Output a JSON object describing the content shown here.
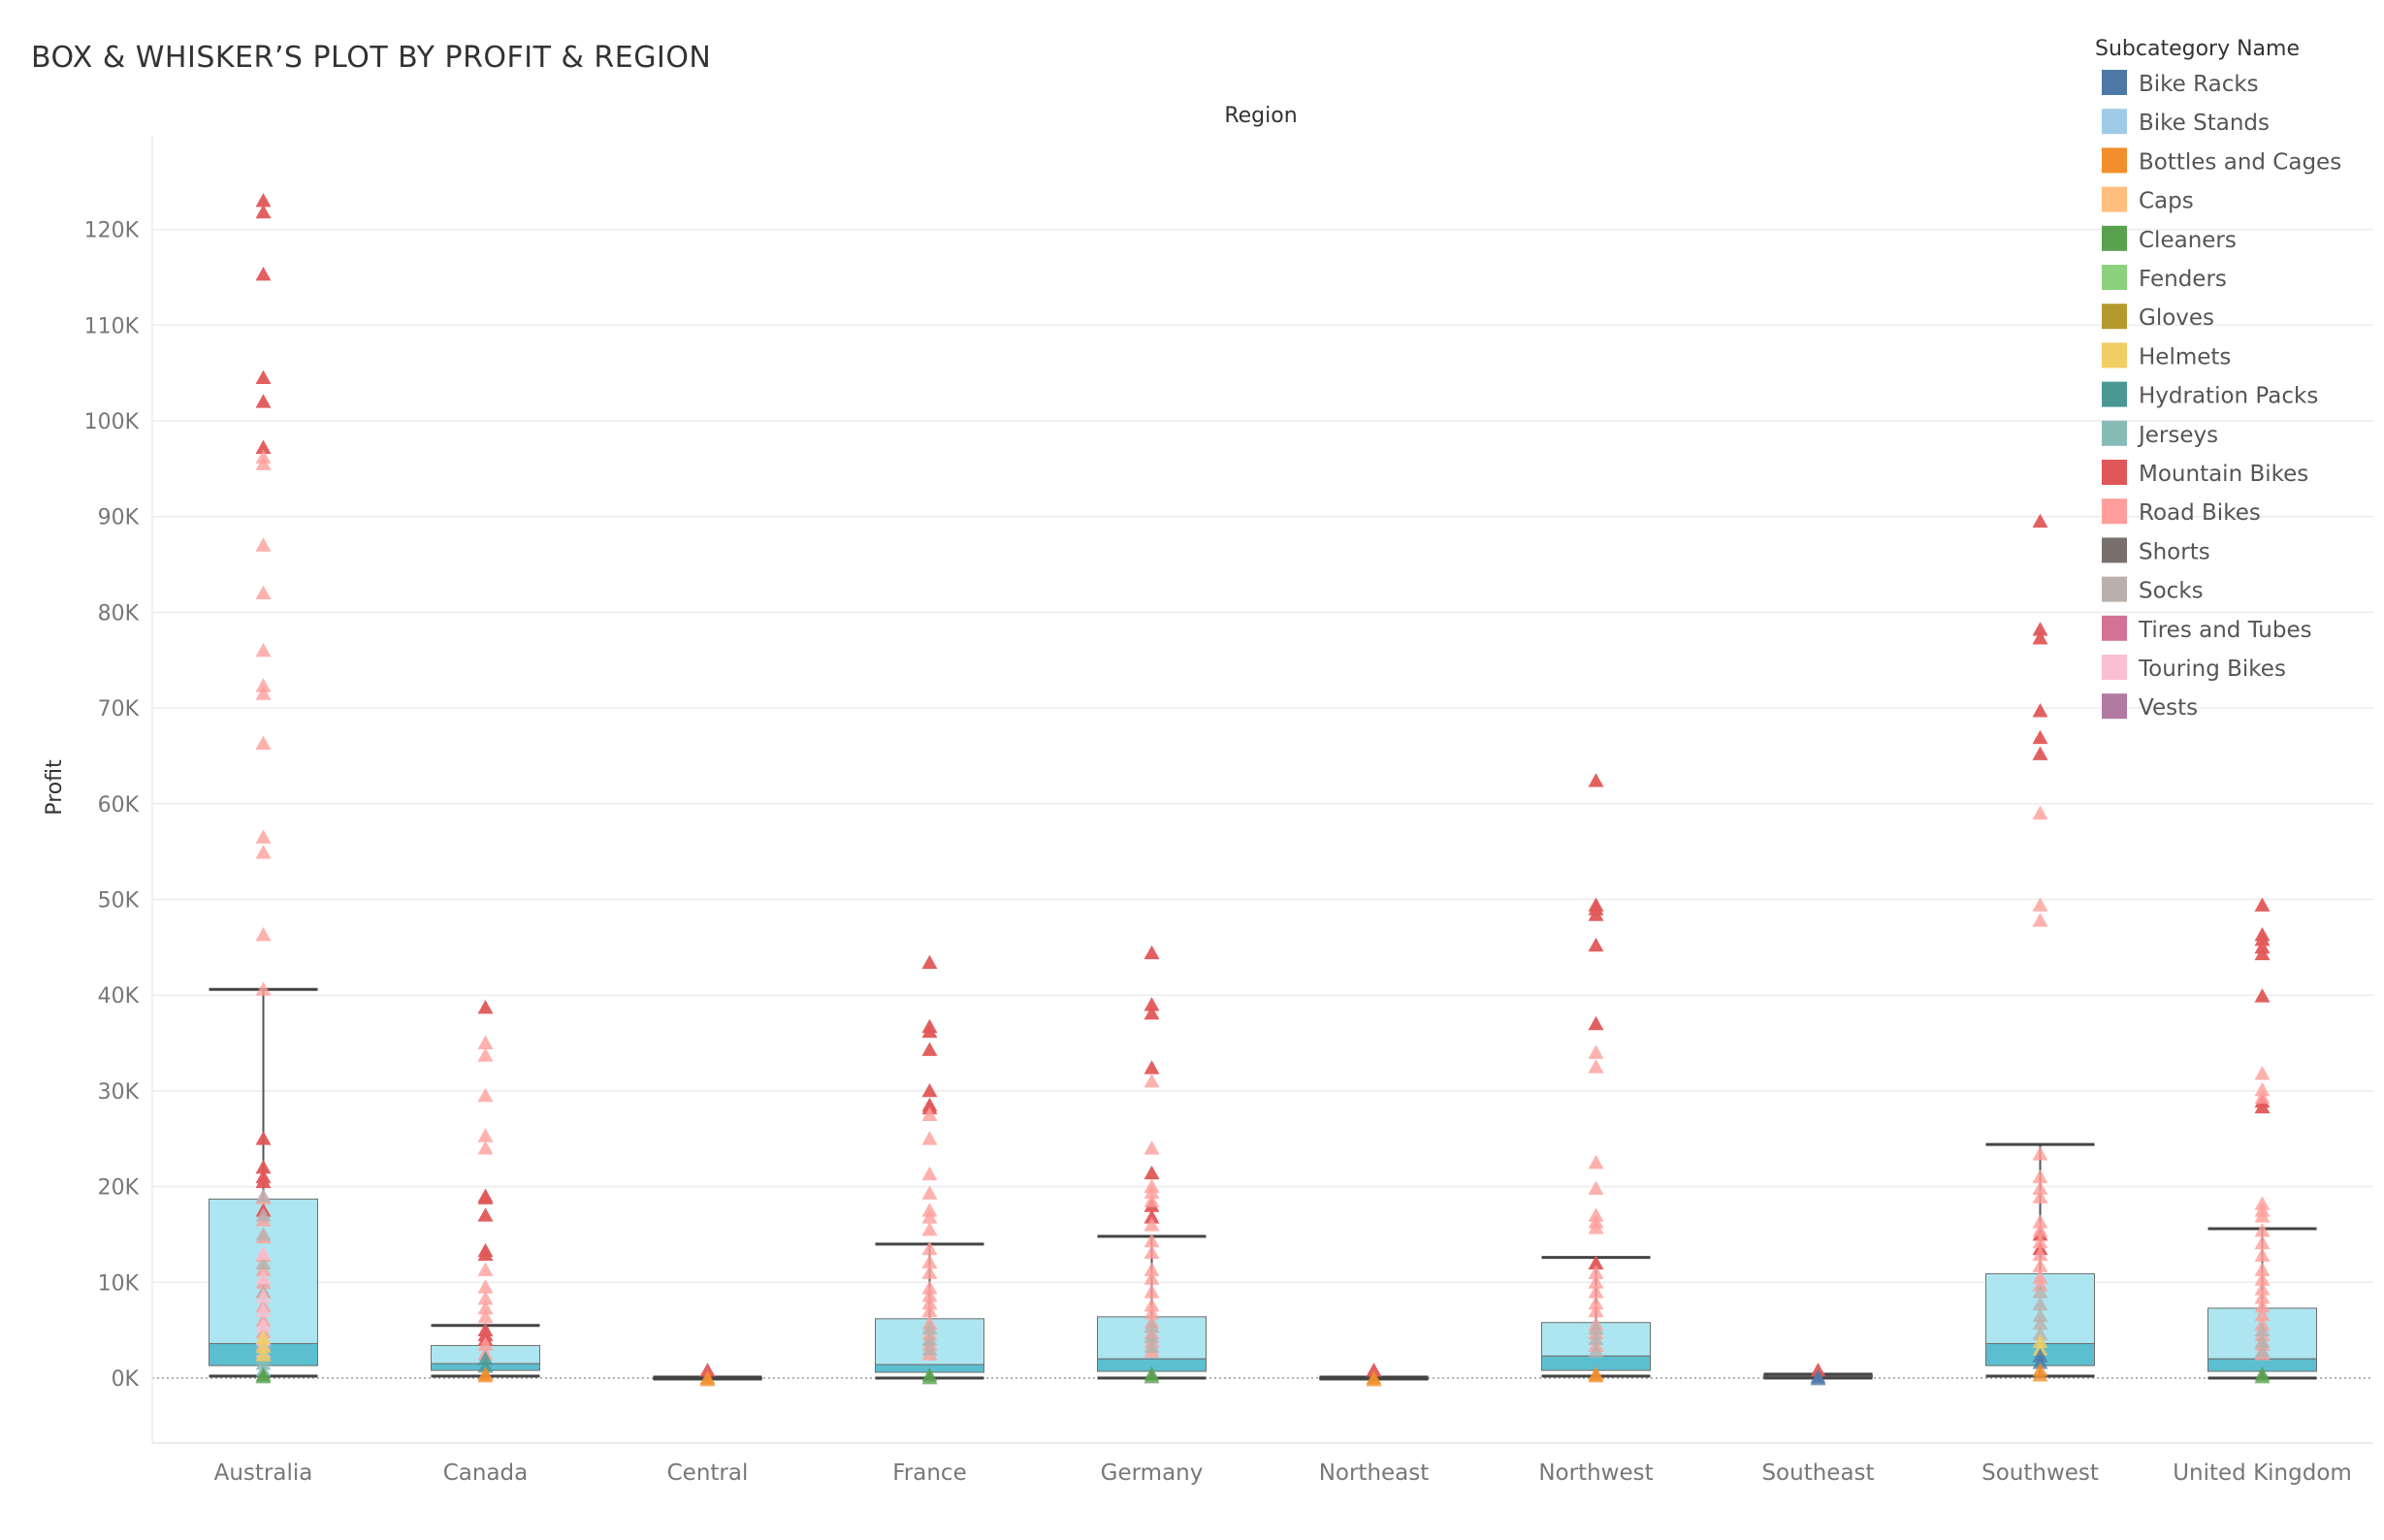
{
  "chart_data": {
    "type": "box",
    "title": "BOX & WHISKER’S PLOT BY PROFIT & REGION",
    "column_header": "Region",
    "ylabel": "Profit",
    "ylim": [
      -7000,
      130000
    ],
    "yticks": [
      0,
      10000,
      20000,
      30000,
      40000,
      50000,
      60000,
      70000,
      80000,
      90000,
      100000,
      110000,
      120000
    ],
    "ytick_labels": [
      "0K",
      "10K",
      "20K",
      "30K",
      "40K",
      "50K",
      "60K",
      "70K",
      "80K",
      "90K",
      "100K",
      "110K",
      "120K"
    ],
    "grid": true,
    "legend_placement": "top-right",
    "legend_title": "Subcategory Name",
    "categories": [
      "Australia",
      "Canada",
      "Central",
      "France",
      "Germany",
      "Northeast",
      "Northwest",
      "Southeast",
      "Southwest",
      "United Kingdom"
    ],
    "legend": [
      {
        "name": "Bike Racks",
        "color": "#4e79a7"
      },
      {
        "name": "Bike Stands",
        "color": "#a0cbe8"
      },
      {
        "name": "Bottles and Cages",
        "color": "#f28e2b"
      },
      {
        "name": "Caps",
        "color": "#ffbe7d"
      },
      {
        "name": "Cleaners",
        "color": "#59a14f"
      },
      {
        "name": "Fenders",
        "color": "#8cd17d"
      },
      {
        "name": "Gloves",
        "color": "#b6992d"
      },
      {
        "name": "Helmets",
        "color": "#f1ce63"
      },
      {
        "name": "Hydration Packs",
        "color": "#499894"
      },
      {
        "name": "Jerseys",
        "color": "#86bcb6"
      },
      {
        "name": "Mountain Bikes",
        "color": "#e15759"
      },
      {
        "name": "Road Bikes",
        "color": "#ff9d9a"
      },
      {
        "name": "Shorts",
        "color": "#79706e"
      },
      {
        "name": "Socks",
        "color": "#bab0ac"
      },
      {
        "name": "Tires and Tubes",
        "color": "#d37295"
      },
      {
        "name": "Touring Bikes",
        "color": "#fabfd2"
      },
      {
        "name": "Vests",
        "color": "#b07aa1"
      }
    ],
    "boxes": [
      {
        "category": "Australia",
        "whisker_low": 200,
        "q1": 1300,
        "median": 3600,
        "q3": 18700,
        "whisker_high": 40600
      },
      {
        "category": "Canada",
        "whisker_low": 200,
        "q1": 800,
        "median": 1500,
        "q3": 3400,
        "whisker_high": 5500
      },
      {
        "category": "Central",
        "whisker_low": -100,
        "q1": -50,
        "median": 0,
        "q3": 50,
        "whisker_high": 100
      },
      {
        "category": "France",
        "whisker_low": 0,
        "q1": 600,
        "median": 1400,
        "q3": 6200,
        "whisker_high": 14000
      },
      {
        "category": "Germany",
        "whisker_low": 0,
        "q1": 700,
        "median": 2000,
        "q3": 6400,
        "whisker_high": 14800
      },
      {
        "category": "Northeast",
        "whisker_low": -100,
        "q1": -50,
        "median": 0,
        "q3": 50,
        "whisker_high": 100
      },
      {
        "category": "Northwest",
        "whisker_low": 200,
        "q1": 800,
        "median": 2300,
        "q3": 5800,
        "whisker_high": 12600
      },
      {
        "category": "Southeast",
        "whisker_low": 0,
        "q1": 100,
        "median": 200,
        "q3": 300,
        "whisker_high": 400
      },
      {
        "category": "Southwest",
        "whisker_low": 200,
        "q1": 1300,
        "median": 3600,
        "q3": 10900,
        "whisker_high": 24400
      },
      {
        "category": "United Kingdom",
        "whisker_low": 0,
        "q1": 700,
        "median": 2000,
        "q3": 7300,
        "whisker_high": 15600
      }
    ],
    "points": [
      {
        "category": "Australia",
        "series": "Mountain Bikes",
        "values": [
          123000,
          121800,
          115300,
          104500,
          102000,
          97200,
          25000,
          22000,
          21000,
          20500,
          17500
        ]
      },
      {
        "category": "Australia",
        "series": "Road Bikes",
        "values": [
          96200,
          95500,
          87000,
          82000,
          76000,
          72300,
          71500,
          66300,
          56500,
          54900,
          46300,
          40600,
          18800,
          16500,
          14700,
          12800,
          11300,
          10000,
          9000,
          7500,
          6000,
          4800,
          3500,
          2500
        ]
      },
      {
        "category": "Australia",
        "series": "Socks",
        "values": [
          19000,
          17000,
          15000,
          12000,
          9000
        ]
      },
      {
        "category": "Australia",
        "series": "Touring Bikes",
        "values": [
          13000,
          10500,
          8500,
          7000,
          5500,
          4000,
          2800
        ]
      },
      {
        "category": "Australia",
        "series": "Jerseys",
        "values": [
          3000,
          2000,
          1500,
          800
        ]
      },
      {
        "category": "Australia",
        "series": "Helmets",
        "values": [
          4200,
          3300,
          2400
        ]
      },
      {
        "category": "Australia",
        "series": "Cleaners",
        "values": [
          300,
          100
        ]
      },
      {
        "category": "Canada",
        "series": "Mountain Bikes",
        "values": [
          38700,
          19000,
          18800,
          17000,
          13300,
          12900,
          5000,
          4500,
          4000
        ]
      },
      {
        "category": "Canada",
        "series": "Road Bikes",
        "values": [
          35000,
          33700,
          29500,
          25300,
          24000,
          11300,
          9500,
          8300,
          7300,
          6400,
          3500,
          2500
        ]
      },
      {
        "category": "Canada",
        "series": "Hydration Packs",
        "values": [
          2000,
          1200
        ]
      },
      {
        "category": "Canada",
        "series": "Bottles and Cages",
        "values": [
          400,
          200
        ]
      },
      {
        "category": "Central",
        "series": "Mountain Bikes",
        "values": [
          800
        ]
      },
      {
        "category": "Central",
        "series": "Bottles and Cages",
        "values": [
          0,
          -200
        ]
      },
      {
        "category": "France",
        "series": "Mountain Bikes",
        "values": [
          43400,
          36700,
          36200,
          34300,
          30000,
          28500,
          28200
        ]
      },
      {
        "category": "France",
        "series": "Road Bikes",
        "values": [
          27500,
          25000,
          21300,
          19300,
          17500,
          16800,
          15500,
          13500,
          12100,
          11000,
          9400,
          8600,
          7800,
          7000,
          5700,
          4600,
          3500,
          2500
        ]
      },
      {
        "category": "France",
        "series": "Socks",
        "values": [
          5200,
          4000,
          3000
        ]
      },
      {
        "category": "France",
        "series": "Cleaners",
        "values": [
          300,
          0
        ]
      },
      {
        "category": "Germany",
        "series": "Mountain Bikes",
        "values": [
          44400,
          39000,
          38100,
          32400,
          21400,
          18000,
          16800
        ]
      },
      {
        "category": "Germany",
        "series": "Road Bikes",
        "values": [
          31000,
          24000,
          20000,
          19400,
          18500,
          16000,
          14300,
          13100,
          11300,
          10400,
          9000,
          7600,
          6800,
          5800,
          4700,
          3800,
          2800
        ]
      },
      {
        "category": "Germany",
        "series": "Socks",
        "values": [
          5400,
          4300,
          3300
        ]
      },
      {
        "category": "Germany",
        "series": "Cleaners",
        "values": [
          400,
          100
        ]
      },
      {
        "category": "Northeast",
        "series": "Mountain Bikes",
        "values": [
          800
        ]
      },
      {
        "category": "Northeast",
        "series": "Bottles and Cages",
        "values": [
          0,
          -200
        ]
      },
      {
        "category": "Northwest",
        "series": "Mountain Bikes",
        "values": [
          62400,
          49400,
          49000,
          48400,
          45200,
          37000,
          12000
        ]
      },
      {
        "category": "Northwest",
        "series": "Road Bikes",
        "values": [
          34000,
          32500,
          22500,
          19800,
          17000,
          16300,
          15700,
          11000,
          10000,
          9000,
          7800,
          7000,
          5600,
          4700,
          3400
        ]
      },
      {
        "category": "Northwest",
        "series": "Socks",
        "values": [
          5200,
          4100,
          2800
        ]
      },
      {
        "category": "Northwest",
        "series": "Bottles and Cages",
        "values": [
          400,
          200
        ]
      },
      {
        "category": "Southeast",
        "series": "Mountain Bikes",
        "values": [
          800
        ]
      },
      {
        "category": "Southeast",
        "series": "Bike Racks",
        "values": [
          100,
          -100
        ]
      },
      {
        "category": "Southwest",
        "series": "Mountain Bikes",
        "values": [
          89500,
          78200,
          77300,
          69700,
          66900,
          65200,
          15000,
          13500
        ]
      },
      {
        "category": "Southwest",
        "series": "Road Bikes",
        "values": [
          59000,
          49400,
          47800,
          23400,
          21000,
          19800,
          18900,
          16300,
          15400,
          14200,
          12900,
          11700,
          10500,
          9700
        ]
      },
      {
        "category": "Southwest",
        "series": "Socks",
        "values": [
          9000,
          7700,
          6500,
          5700,
          4600
        ]
      },
      {
        "category": "Southwest",
        "series": "Helmets",
        "values": [
          3800,
          3000
        ]
      },
      {
        "category": "Southwest",
        "series": "Bike Racks",
        "values": [
          2300,
          1600
        ]
      },
      {
        "category": "Southwest",
        "series": "Bottles and Cages",
        "values": [
          800,
          300
        ]
      },
      {
        "category": "United Kingdom",
        "series": "Mountain Bikes",
        "values": [
          49400,
          46300,
          45800,
          45000,
          44300,
          39900,
          28900,
          28300
        ]
      },
      {
        "category": "United Kingdom",
        "series": "Road Bikes",
        "values": [
          31800,
          30100,
          29300,
          18200,
          17500,
          16900,
          15400,
          14100,
          12800,
          11300,
          10300,
          9300,
          8400,
          7500,
          6600,
          5600,
          4500,
          3500,
          2500
        ]
      },
      {
        "category": "United Kingdom",
        "series": "Socks",
        "values": [
          5000,
          3800,
          2800
        ]
      },
      {
        "category": "United Kingdom",
        "series": "Cleaners",
        "values": [
          400,
          100
        ]
      }
    ]
  }
}
